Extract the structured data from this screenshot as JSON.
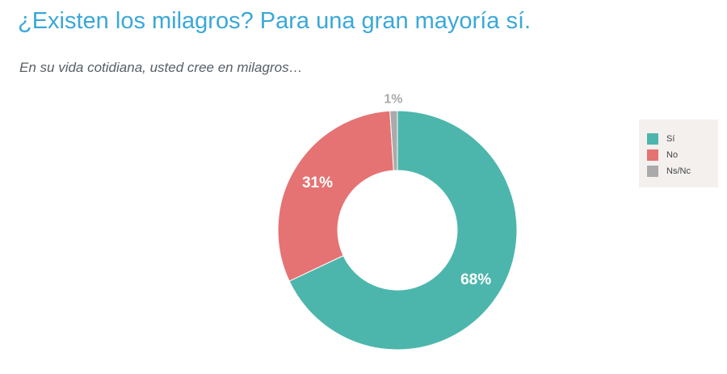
{
  "header": {
    "title": "¿Existen los milagros? Para una gran mayoría sí.",
    "subtitle": "En su vida cotidiana, usted cree en milagros…"
  },
  "chart_data": {
    "type": "pie",
    "variant": "donut",
    "categories": [
      "Sí",
      "No",
      "Ns/Nc"
    ],
    "values": [
      68,
      31,
      1
    ],
    "labels": [
      "68%",
      "31%",
      "1%"
    ],
    "colors": [
      "#4db6ac",
      "#e57373",
      "#aaaaaa"
    ],
    "legend_position": "right"
  }
}
